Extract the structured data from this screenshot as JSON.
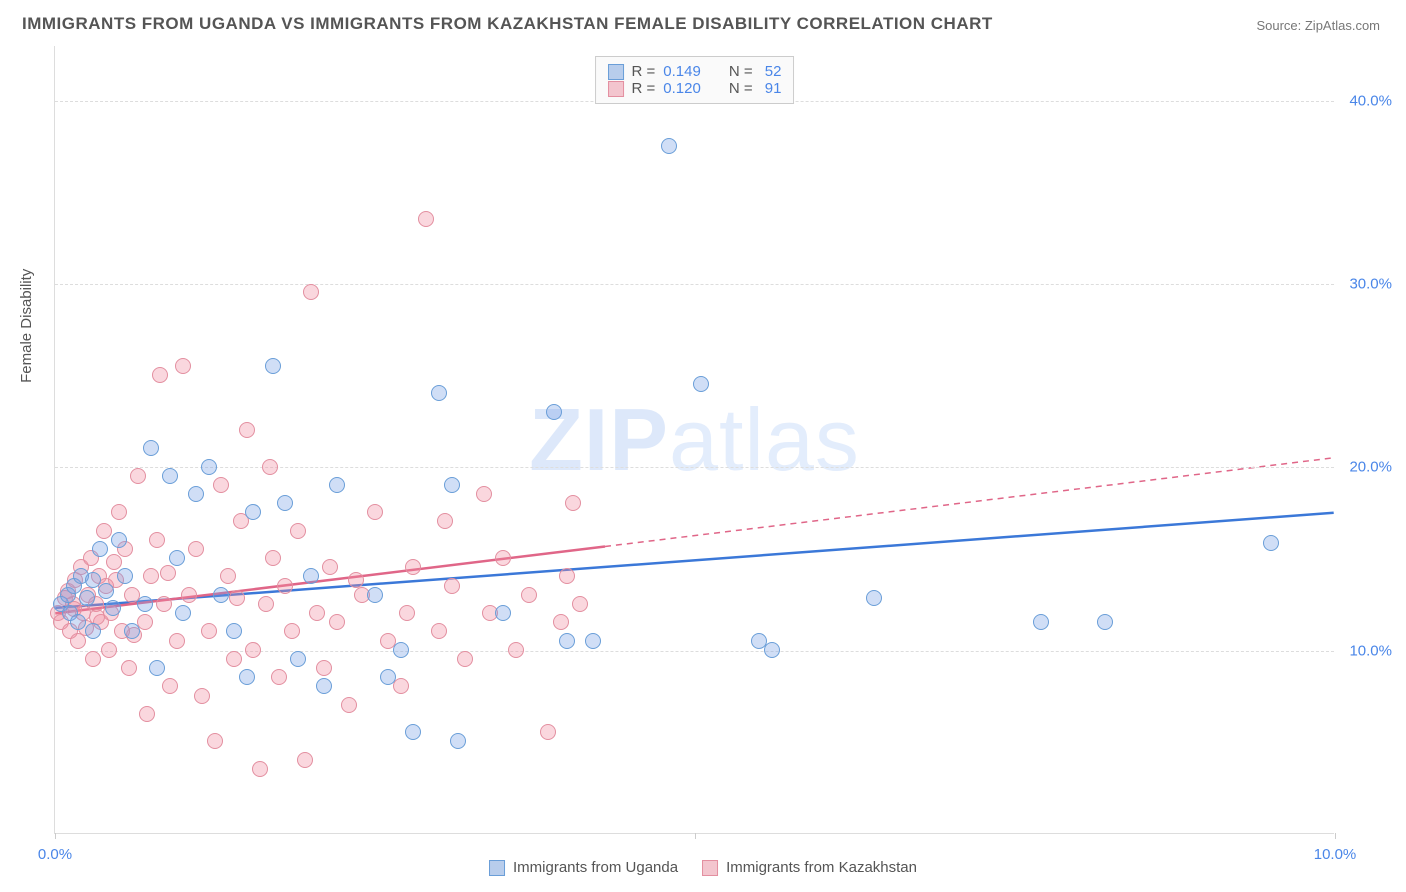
{
  "title": "IMMIGRANTS FROM UGANDA VS IMMIGRANTS FROM KAZAKHSTAN FEMALE DISABILITY CORRELATION CHART",
  "source": "Source: ZipAtlas.com",
  "y_axis_title": "Female Disability",
  "watermark_bold": "ZIP",
  "watermark_thin": "atlas",
  "chart": {
    "type": "scatter",
    "background_color": "#ffffff",
    "grid_color": "#dddddd",
    "xlim": [
      0,
      10
    ],
    "ylim": [
      0,
      43
    ],
    "x_ticks": [
      0,
      5,
      10
    ],
    "x_tick_labels": [
      "0.0%",
      "",
      "10.0%"
    ],
    "y_ticks": [
      10,
      20,
      30,
      40
    ],
    "y_tick_labels": [
      "10.0%",
      "20.0%",
      "30.0%",
      "40.0%"
    ],
    "marker_radius": 8,
    "marker_stroke_width": 1.5,
    "trend_line_width": 2.5,
    "axis_label_color": "#4a86e8",
    "axis_label_fontsize": 15,
    "title_color": "#555555",
    "title_fontsize": 17,
    "series": [
      {
        "name": "Immigrants from Uganda",
        "fill_color": "rgba(120,160,230,0.35)",
        "stroke_color": "#6a9ed8",
        "swatch_fill": "#b8cdec",
        "swatch_border": "#6a9ed8",
        "r_value": "0.149",
        "n_value": "52",
        "trend": {
          "x1": 0,
          "y1": 12.3,
          "x2": 10,
          "y2": 17.5,
          "color": "#3b78d8",
          "dash_from_x": null
        },
        "points": [
          [
            0.05,
            12.5
          ],
          [
            0.1,
            13.0
          ],
          [
            0.12,
            12.0
          ],
          [
            0.15,
            13.5
          ],
          [
            0.18,
            11.5
          ],
          [
            0.2,
            14.0
          ],
          [
            0.25,
            12.8
          ],
          [
            0.3,
            11.0
          ],
          [
            0.35,
            15.5
          ],
          [
            0.4,
            13.2
          ],
          [
            0.5,
            16.0
          ],
          [
            0.55,
            14.0
          ],
          [
            0.6,
            11.0
          ],
          [
            0.7,
            12.5
          ],
          [
            0.75,
            21.0
          ],
          [
            0.8,
            9.0
          ],
          [
            0.9,
            19.5
          ],
          [
            0.95,
            15.0
          ],
          [
            1.0,
            12.0
          ],
          [
            1.1,
            18.5
          ],
          [
            1.2,
            20.0
          ],
          [
            1.3,
            13.0
          ],
          [
            1.4,
            11.0
          ],
          [
            1.5,
            8.5
          ],
          [
            1.55,
            17.5
          ],
          [
            1.7,
            25.5
          ],
          [
            1.8,
            18.0
          ],
          [
            1.9,
            9.5
          ],
          [
            2.0,
            14.0
          ],
          [
            2.1,
            8.0
          ],
          [
            2.2,
            19.0
          ],
          [
            2.5,
            13.0
          ],
          [
            2.6,
            8.5
          ],
          [
            2.7,
            10.0
          ],
          [
            2.8,
            5.5
          ],
          [
            3.0,
            24.0
          ],
          [
            3.1,
            19.0
          ],
          [
            3.15,
            5.0
          ],
          [
            3.5,
            12.0
          ],
          [
            3.9,
            23.0
          ],
          [
            4.0,
            10.5
          ],
          [
            4.2,
            10.5
          ],
          [
            4.8,
            37.5
          ],
          [
            5.05,
            24.5
          ],
          [
            5.5,
            10.5
          ],
          [
            5.6,
            10.0
          ],
          [
            6.4,
            12.8
          ],
          [
            7.7,
            11.5
          ],
          [
            8.2,
            11.5
          ],
          [
            9.5,
            15.8
          ],
          [
            0.3,
            13.8
          ],
          [
            0.45,
            12.3
          ]
        ]
      },
      {
        "name": "Immigrants from Kazakhstan",
        "fill_color": "rgba(240,140,160,0.35)",
        "stroke_color": "#e38fa0",
        "swatch_fill": "#f3c5ce",
        "swatch_border": "#e38fa0",
        "r_value": "0.120",
        "n_value": "91",
        "trend": {
          "x1": 0,
          "y1": 12.0,
          "x2": 10,
          "y2": 20.5,
          "color": "#e06688",
          "dash_from_x": 4.3
        },
        "points": [
          [
            0.02,
            12.0
          ],
          [
            0.05,
            11.5
          ],
          [
            0.08,
            12.8
          ],
          [
            0.1,
            13.2
          ],
          [
            0.12,
            11.0
          ],
          [
            0.14,
            12.5
          ],
          [
            0.16,
            13.8
          ],
          [
            0.18,
            10.5
          ],
          [
            0.2,
            14.5
          ],
          [
            0.22,
            12.0
          ],
          [
            0.24,
            11.2
          ],
          [
            0.26,
            13.0
          ],
          [
            0.28,
            15.0
          ],
          [
            0.3,
            9.5
          ],
          [
            0.32,
            12.5
          ],
          [
            0.34,
            14.0
          ],
          [
            0.36,
            11.5
          ],
          [
            0.38,
            16.5
          ],
          [
            0.4,
            13.5
          ],
          [
            0.42,
            10.0
          ],
          [
            0.44,
            12.0
          ],
          [
            0.46,
            14.8
          ],
          [
            0.5,
            17.5
          ],
          [
            0.52,
            11.0
          ],
          [
            0.55,
            15.5
          ],
          [
            0.58,
            9.0
          ],
          [
            0.6,
            13.0
          ],
          [
            0.65,
            19.5
          ],
          [
            0.7,
            11.5
          ],
          [
            0.72,
            6.5
          ],
          [
            0.75,
            14.0
          ],
          [
            0.8,
            16.0
          ],
          [
            0.82,
            25.0
          ],
          [
            0.85,
            12.5
          ],
          [
            0.9,
            8.0
          ],
          [
            0.95,
            10.5
          ],
          [
            1.0,
            25.5
          ],
          [
            1.05,
            13.0
          ],
          [
            1.1,
            15.5
          ],
          [
            1.15,
            7.5
          ],
          [
            1.2,
            11.0
          ],
          [
            1.25,
            5.0
          ],
          [
            1.3,
            19.0
          ],
          [
            1.35,
            14.0
          ],
          [
            1.4,
            9.5
          ],
          [
            1.45,
            17.0
          ],
          [
            1.5,
            22.0
          ],
          [
            1.55,
            10.0
          ],
          [
            1.6,
            3.5
          ],
          [
            1.65,
            12.5
          ],
          [
            1.68,
            20.0
          ],
          [
            1.7,
            15.0
          ],
          [
            1.75,
            8.5
          ],
          [
            1.8,
            13.5
          ],
          [
            1.85,
            11.0
          ],
          [
            1.9,
            16.5
          ],
          [
            1.95,
            4.0
          ],
          [
            2.0,
            29.5
          ],
          [
            2.05,
            12.0
          ],
          [
            2.1,
            9.0
          ],
          [
            2.15,
            14.5
          ],
          [
            2.2,
            11.5
          ],
          [
            2.3,
            7.0
          ],
          [
            2.4,
            13.0
          ],
          [
            2.5,
            17.5
          ],
          [
            2.6,
            10.5
          ],
          [
            2.7,
            8.0
          ],
          [
            2.75,
            12.0
          ],
          [
            2.8,
            14.5
          ],
          [
            2.9,
            33.5
          ],
          [
            3.0,
            11.0
          ],
          [
            3.05,
            17.0
          ],
          [
            3.1,
            13.5
          ],
          [
            3.2,
            9.5
          ],
          [
            3.35,
            18.5
          ],
          [
            3.4,
            12.0
          ],
          [
            3.5,
            15.0
          ],
          [
            3.6,
            10.0
          ],
          [
            3.7,
            13.0
          ],
          [
            3.85,
            5.5
          ],
          [
            3.95,
            11.5
          ],
          [
            4.0,
            14.0
          ],
          [
            4.05,
            18.0
          ],
          [
            4.1,
            12.5
          ],
          [
            0.15,
            12.2
          ],
          [
            0.33,
            11.8
          ],
          [
            0.48,
            13.8
          ],
          [
            0.62,
            10.8
          ],
          [
            0.88,
            14.2
          ],
          [
            1.42,
            12.8
          ],
          [
            2.35,
            13.8
          ]
        ]
      }
    ]
  },
  "legend_top": {
    "r_prefix": "R =",
    "n_prefix": "N ="
  },
  "legend_bottom": {
    "items": [
      "Immigrants from Uganda",
      "Immigrants from Kazakhstan"
    ]
  }
}
